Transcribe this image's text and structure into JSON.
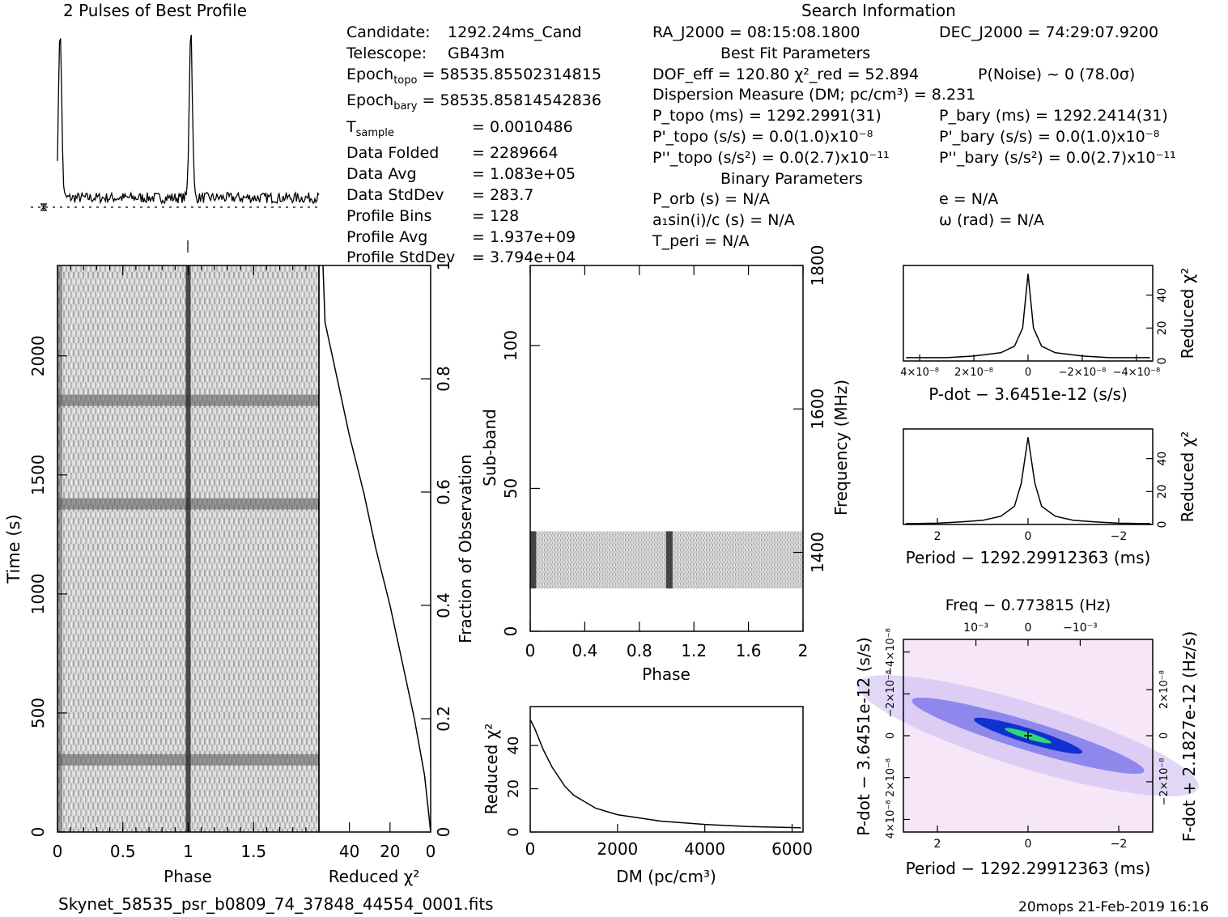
{
  "titles": {
    "profile": "2 Pulses of Best Profile",
    "search": "Search Information"
  },
  "info_left": [
    {
      "label": "Candidate:",
      "value": "1292.24ms_Cand"
    },
    {
      "label": "Telescope:",
      "value": "GB43m"
    },
    {
      "label": "Epoch",
      "sub": "topo",
      "value": "= 58535.85502314815"
    },
    {
      "label": "Epoch",
      "sub": "bary",
      "value": "= 58535.85814542836"
    },
    {
      "label": "T",
      "sub": "sample",
      "value": "=   0.0010486"
    },
    {
      "label": "Data Folded",
      "value": "=   2289664"
    },
    {
      "label": "Data Avg",
      "value": "=   1.083e+05"
    },
    {
      "label": "Data StdDev",
      "value": "=   283.7"
    },
    {
      "label": "Profile Bins",
      "value": "=   128"
    },
    {
      "label": "Profile Avg",
      "value": "=   1.937e+09"
    },
    {
      "label": "Profile StdDev",
      "value": "=   3.794e+04"
    }
  ],
  "info_mid": [
    "RA_J2000 = 08:15:08.1800",
    "Best Fit Parameters",
    "DOF_eff = 120.80  χ²_red = 52.894",
    "Dispersion Measure (DM; pc/cm³) = 8.231",
    "P_topo (ms) =  1292.2991(31)",
    "P'_topo (s/s) = 0.0(1.0)x10⁻⁸",
    "P''_topo (s/s²) = 0.0(2.7)x10⁻¹¹",
    "Binary Parameters",
    "P_orb (s) = N/A",
    "a₁sin(i)/c (s) = N/A",
    "T_peri = N/A"
  ],
  "info_right": [
    "DEC_J2000 = 74:29:07.9200",
    "P(Noise) ~ 0   (78.0σ)",
    "P_bary (ms) =  1292.2414(31)",
    "P'_bary (s/s) = 0.0(1.0)x10⁻⁸",
    "P''_bary (s/s²) = 0.0(2.7)x10⁻¹¹",
    "e = N/A",
    "ω (rad) = N/A"
  ],
  "footer": {
    "filename": "Skynet_58535_psr_b0809_74_37848_44554_0001.fits",
    "stamp": "20mops 21-Feb-2019 16:16"
  },
  "chart_data": [
    {
      "type": "line",
      "name": "profile",
      "title": "2 Pulses of Best Profile",
      "xlim": [
        0,
        2
      ],
      "pulse_phase": [
        0.02,
        1.02
      ],
      "baseline_level": 0.08
    },
    {
      "type": "heatmap",
      "name": "time-phase",
      "xlabel": "Phase",
      "ylabel": "Time (s)",
      "xlim": [
        0,
        2
      ],
      "ylim": [
        0,
        2380
      ],
      "xticks": [
        "0",
        "0.5",
        "1",
        "1.5"
      ],
      "yticks": [
        "0",
        "500",
        "1000",
        "1500",
        "2000"
      ],
      "pulse_phase": [
        1.0
      ],
      "dark_time_bands_s": [
        300,
        1375,
        1810
      ]
    },
    {
      "type": "line",
      "name": "reduced-chisq-vs-fraction",
      "xlabel": "Reduced χ²",
      "ylabel": "Fraction of Observation",
      "xticks": [
        "40",
        "20",
        "0"
      ],
      "yticks": [
        "0",
        "0.2",
        "0.4",
        "0.6",
        "0.8",
        "1"
      ],
      "x": [
        0,
        3,
        8,
        14,
        20,
        27,
        33,
        40,
        46,
        52,
        53
      ],
      "y": [
        0,
        0.1,
        0.2,
        0.3,
        0.4,
        0.5,
        0.6,
        0.7,
        0.8,
        0.9,
        1.0
      ]
    },
    {
      "type": "heatmap",
      "name": "subband-phase",
      "xlabel": "Phase",
      "ylabel": "Sub-band",
      "y2label": "Frequency (MHz)",
      "xlim": [
        0,
        2
      ],
      "ylim": [
        0,
        128
      ],
      "xticks": [
        "0",
        "0.4",
        "0.8",
        "1.2",
        "1.6",
        "2"
      ],
      "yticks": [
        "0",
        "50",
        "100"
      ],
      "y2ticks": [
        "1400",
        "1600",
        "1800"
      ],
      "active_subbands": [
        15,
        35
      ],
      "pulse_phase": [
        0.02,
        1.02
      ]
    },
    {
      "type": "line",
      "name": "dm-curve",
      "xlabel": "DM (pc/cm³)",
      "ylabel": "Reduced χ²",
      "xticks": [
        "0",
        "2000",
        "4000",
        "6000"
      ],
      "yticks": [
        "0",
        "20",
        "40"
      ],
      "x": [
        0,
        100,
        300,
        500,
        800,
        1000,
        1500,
        2000,
        3000,
        4000,
        5000,
        6200
      ],
      "y": [
        52,
        48,
        38,
        30,
        21,
        17,
        11,
        8,
        5,
        3.5,
        2.5,
        2
      ]
    },
    {
      "type": "line",
      "name": "pdot-curve",
      "xlabel": "P-dot − 3.6451e-12 (s/s)",
      "ylabel": "Reduced χ²",
      "xticks": [
        "4×10⁻⁸",
        "2×10⁻⁸",
        "0",
        "−2×10⁻⁸",
        "−4×10⁻⁸"
      ],
      "yticks": [
        "0",
        "20",
        "40"
      ],
      "x": [
        4.5e-08,
        3e-08,
        2e-08,
        1e-08,
        5e-09,
        2e-09,
        0,
        -2e-09,
        -5e-09,
        -1e-08,
        -2e-08,
        -3e-08,
        -4.5e-08
      ],
      "y": [
        2,
        2,
        3,
        5,
        9,
        20,
        53,
        20,
        9,
        5,
        3,
        2,
        2
      ]
    },
    {
      "type": "line",
      "name": "period-curve",
      "xlabel": "Period − 1292.29912363 (ms)",
      "ylabel": "Reduced χ²",
      "xticks": [
        "2",
        "0",
        "−2"
      ],
      "yticks": [
        "0",
        "20",
        "40"
      ],
      "x": [
        2.7,
        2,
        1.5,
        1,
        0.6,
        0.3,
        0.15,
        0,
        -0.15,
        -0.3,
        -0.6,
        -1,
        -1.5,
        -2,
        -2.7
      ],
      "y": [
        0.5,
        0.8,
        1.5,
        2.5,
        5,
        11,
        25,
        53,
        25,
        11,
        5,
        2.5,
        1.5,
        0.8,
        0.5
      ]
    },
    {
      "type": "heatmap",
      "name": "period-pdot",
      "xlabel": "Period − 1292.29912363 (ms)",
      "ylabel": "P-dot − 3.6451e-12 (s/s)",
      "x2label": "Freq − 0.773815 (Hz)",
      "y2label": "F-dot + 2.1827e-12 (Hz/s)",
      "xticks": [
        "2",
        "0",
        "−2"
      ],
      "x2ticks": [
        "−10⁻³",
        "0",
        "10⁻³"
      ],
      "yticks": [
        "4×10⁻⁸",
        "2×10⁻⁸",
        "0",
        "−2×10⁻⁸",
        "−4×10⁻⁸"
      ],
      "y2ticks": [
        "2×10⁻⁸",
        "0",
        "−2×10⁻⁸"
      ],
      "peak": [
        0,
        0
      ]
    }
  ]
}
